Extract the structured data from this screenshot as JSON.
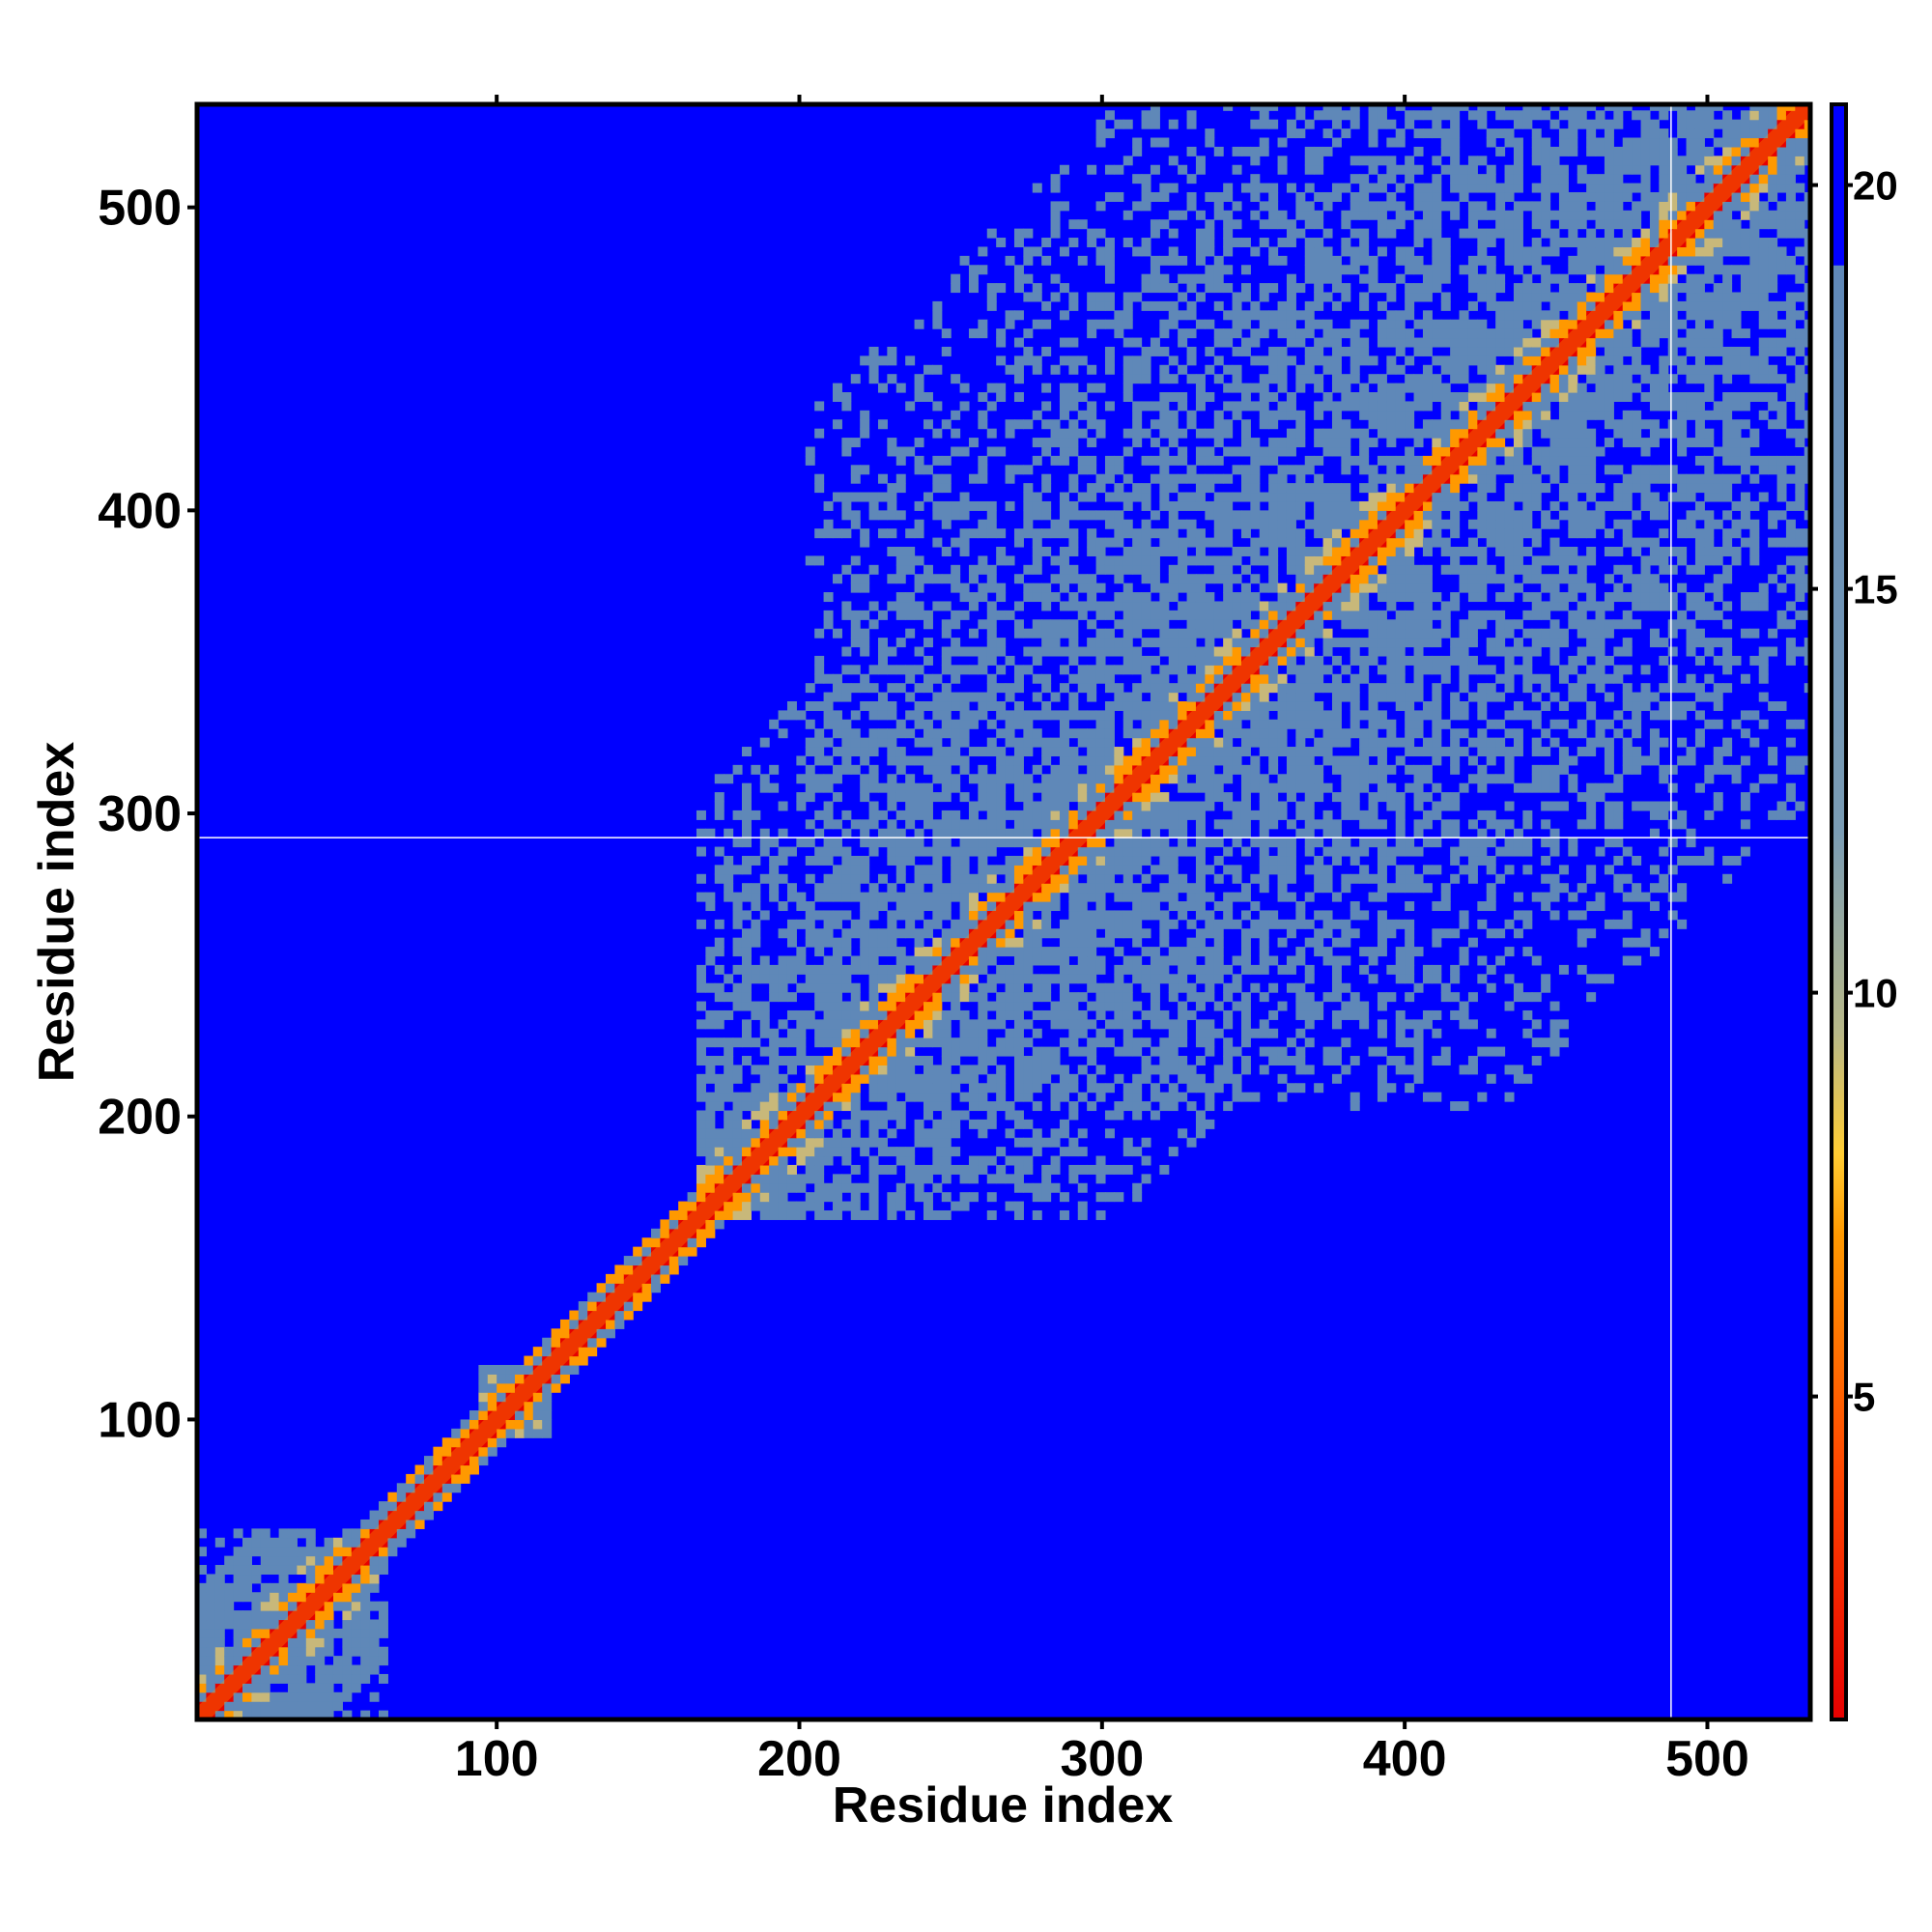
{
  "chart_data": {
    "type": "heatmap",
    "title": "",
    "xlabel": "Residue index",
    "ylabel": "Residue index",
    "xlim": [
      1,
      534
    ],
    "ylim": [
      1,
      534
    ],
    "x_ticks": [
      100,
      200,
      300,
      400,
      500
    ],
    "y_ticks": [
      100,
      200,
      300,
      400,
      500
    ],
    "colorbar": {
      "range": [
        1,
        21
      ],
      "ticks": [
        5,
        10,
        15,
        20
      ],
      "stops": [
        {
          "value": 1,
          "color": "#e60000"
        },
        {
          "value": 4,
          "color": "#ff4500"
        },
        {
          "value": 7,
          "color": "#ff9900"
        },
        {
          "value": 8,
          "color": "#ffcc33"
        },
        {
          "value": 9.5,
          "color": "#b8b888"
        },
        {
          "value": 12,
          "color": "#7a9cb4"
        },
        {
          "value": 19,
          "color": "#5f88b8"
        },
        {
          "value": 19.01,
          "color": "#0000ff"
        },
        {
          "value": 21,
          "color": "#0000ff"
        }
      ]
    },
    "matrix_description": "Symmetric residue-residue distance map; minimum along diagonal, contact regions near residues 1-60, 95-115 and 165-534",
    "white_guide_lines": {
      "x": 488,
      "y": 292
    },
    "colors": {
      "background": "#0000ff",
      "diagonal": "#e60000",
      "contact": "#5f88b8",
      "near_contact": "#ff9900",
      "guide_line": "#ffffff"
    }
  }
}
